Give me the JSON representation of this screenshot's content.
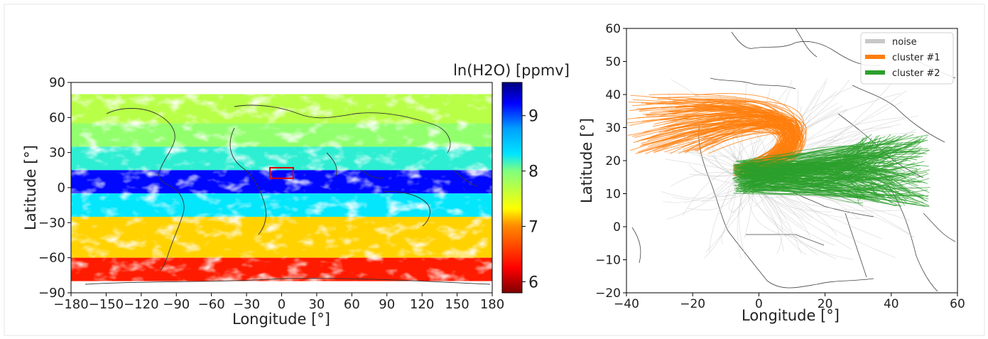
{
  "chart_data": [
    {
      "type": "heatmap",
      "xlabel": "Longitude [°]",
      "ylabel": "Latitude [°]",
      "xlim": [
        -180,
        180
      ],
      "ylim": [
        -90,
        90
      ],
      "xticks": [
        "−180",
        "−150",
        "−120",
        "−90",
        "−60",
        "−30",
        "0",
        "30",
        "60",
        "90",
        "120",
        "150",
        "180"
      ],
      "yticks": [
        "90",
        "60",
        "30",
        "0",
        "−30",
        "−60",
        "−90"
      ],
      "colorbar": {
        "title": "ln(H2O) [ppmv]",
        "range": [
          5.8,
          9.6
        ],
        "ticks": [
          "6",
          "7",
          "8",
          "9"
        ],
        "colormap": "jet_r"
      },
      "highlight_box": {
        "lon": [
          -10,
          10
        ],
        "lat": [
          8,
          17
        ],
        "color": "#dd0000"
      },
      "bands": [
        {
          "lat": [
            -5,
            15
          ],
          "value": 9.2
        },
        {
          "lat": [
            15,
            35
          ],
          "value": 8.2
        },
        {
          "lat": [
            35,
            55
          ],
          "value": 7.9
        },
        {
          "lat": [
            55,
            80
          ],
          "value": 7.7
        },
        {
          "lat": [
            -25,
            -5
          ],
          "value": 8.3
        },
        {
          "lat": [
            -60,
            -25
          ],
          "value": 7.2
        },
        {
          "lat": [
            -80,
            -60
          ],
          "value": 6.4
        }
      ]
    },
    {
      "type": "line",
      "xlabel": "Longitude [°]",
      "ylabel": "Latitude [°]",
      "xlim": [
        -40,
        60
      ],
      "ylim": [
        -20,
        60
      ],
      "xticks": [
        "−40",
        "−20",
        "0",
        "20",
        "40",
        "60"
      ],
      "yticks": [
        "60",
        "50",
        "40",
        "30",
        "20",
        "10",
        "0",
        "−10",
        "−20"
      ],
      "legend_position": "top-right",
      "series": [
        {
          "name": "noise",
          "color": "#c8c8c8",
          "lon_range": [
            -30,
            50
          ],
          "lat_range": [
            -10,
            45
          ]
        },
        {
          "name": "cluster #1",
          "color": "#ff7f0e",
          "start": [
            -8,
            15
          ],
          "end_lon_range": [
            -40,
            -15
          ],
          "end_lat_range": [
            22,
            40
          ]
        },
        {
          "name": "cluster #2",
          "color": "#2ca02c",
          "start": [
            -8,
            15
          ],
          "end_lon_range": [
            30,
            52
          ],
          "end_lat_range": [
            6,
            28
          ]
        }
      ]
    }
  ]
}
